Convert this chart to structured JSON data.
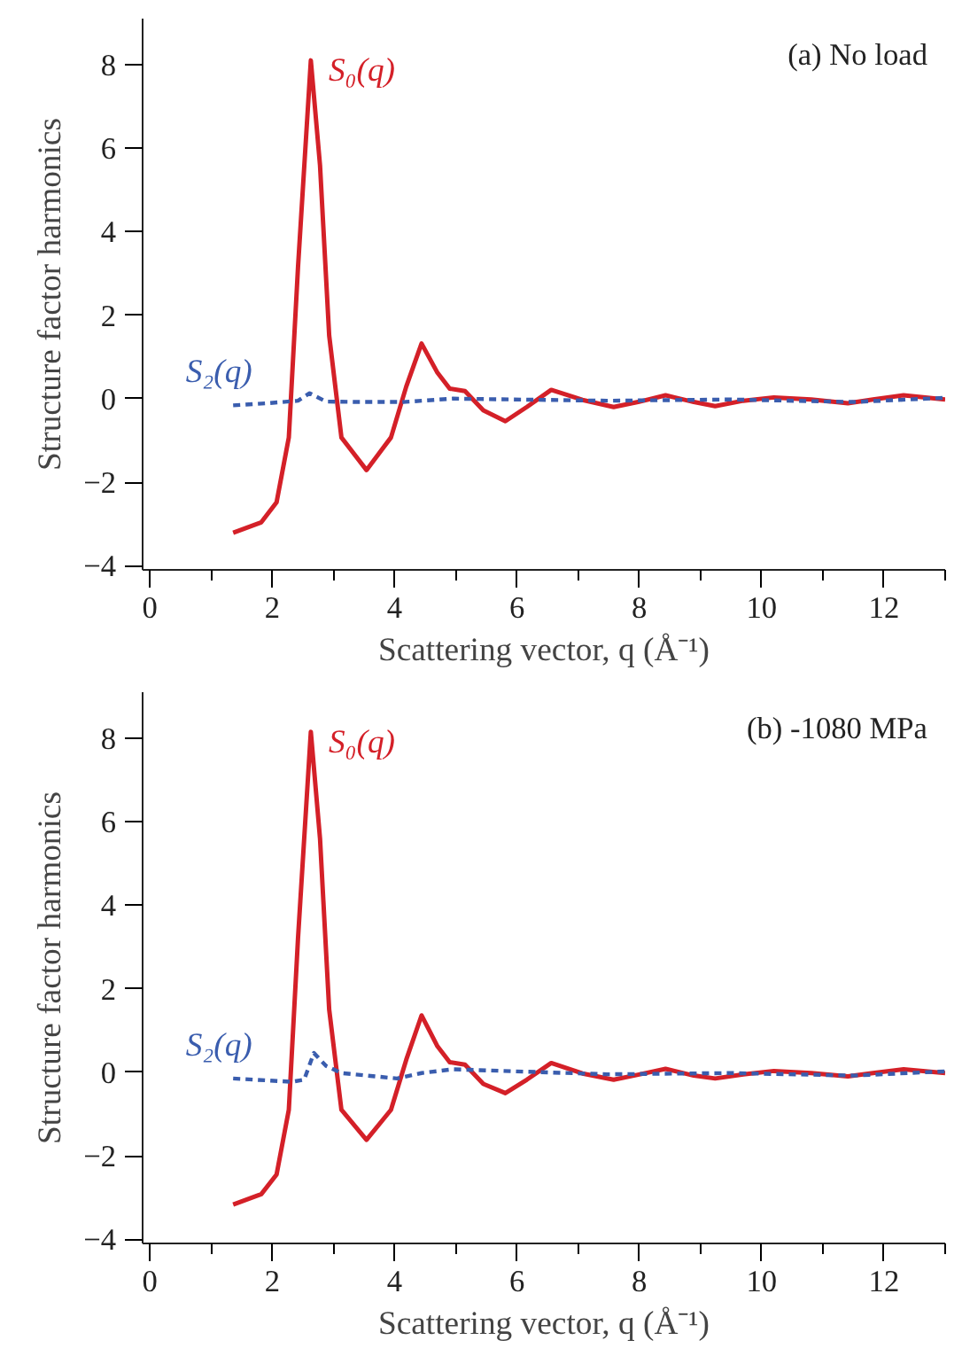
{
  "chart_data": [
    {
      "type": "line",
      "xlabel": "Scattering vector, q (Å⁻¹)",
      "ylabel": "Structure factor harmonics",
      "annotations": [
        "(a) No load"
      ],
      "xlim": [
        -0.12,
        13
      ],
      "ylim": [
        -4.1,
        9.1
      ],
      "xticks": [
        0,
        2,
        4,
        6,
        8,
        10,
        12
      ],
      "yticks": [
        -4,
        -2,
        0,
        2,
        4,
        6,
        8
      ],
      "grid": false,
      "series": [
        {
          "name": "S₀(q)",
          "color": "#d42028",
          "line_style": "solid",
          "x": [
            1.36,
            1.82,
            2.07,
            2.27,
            2.42,
            2.63,
            2.78,
            2.93,
            3.13,
            3.54,
            3.94,
            4.19,
            4.44,
            4.7,
            4.9,
            5.15,
            5.45,
            5.81,
            6.16,
            6.56,
            7.07,
            7.58,
            7.98,
            8.43,
            8.89,
            9.24,
            9.7,
            10.2,
            10.81,
            11.41,
            11.82,
            12.32,
            13.0
          ],
          "values": [
            -3.21,
            -2.96,
            -2.48,
            -0.93,
            3.14,
            8.1,
            5.59,
            1.51,
            -0.93,
            -1.71,
            -0.93,
            0.29,
            1.32,
            0.62,
            0.24,
            0.18,
            -0.28,
            -0.54,
            -0.2,
            0.21,
            -0.03,
            -0.2,
            -0.08,
            0.08,
            -0.08,
            -0.18,
            -0.05,
            0.03,
            -0.02,
            -0.11,
            -0.02,
            0.08,
            -0.02
          ]
        },
        {
          "name": "S₂(q)",
          "color": "#3a5dae",
          "line_style": "dashed",
          "x": [
            1.36,
            1.92,
            2.42,
            2.61,
            2.88,
            3.43,
            4.14,
            4.95,
            7.47,
            9.49,
            11.5,
            13.0
          ],
          "values": [
            -0.16,
            -0.11,
            -0.05,
            0.13,
            -0.07,
            -0.08,
            -0.08,
            0.0,
            -0.05,
            -0.02,
            -0.08,
            0.02
          ]
        }
      ]
    },
    {
      "type": "line",
      "xlabel": "Scattering vector, q (Å⁻¹)",
      "ylabel": "Structure factor harmonics",
      "annotations": [
        "(b) -1080 MPa"
      ],
      "xlim": [
        -0.12,
        13
      ],
      "ylim": [
        -4.1,
        9.1
      ],
      "xticks": [
        0,
        2,
        4,
        6,
        8,
        10,
        12
      ],
      "yticks": [
        -4,
        -2,
        0,
        2,
        4,
        6,
        8
      ],
      "grid": false,
      "series": [
        {
          "name": "S₀(q)",
          "color": "#d42028",
          "line_style": "solid",
          "x": [
            1.36,
            1.82,
            2.07,
            2.27,
            2.42,
            2.63,
            2.78,
            2.93,
            3.13,
            3.54,
            3.94,
            4.19,
            4.44,
            4.7,
            4.9,
            5.15,
            5.45,
            5.81,
            6.16,
            6.56,
            7.07,
            7.58,
            7.98,
            8.43,
            8.89,
            9.24,
            9.7,
            10.2,
            10.81,
            11.41,
            11.82,
            12.32,
            13.0
          ],
          "values": [
            -3.17,
            -2.92,
            -2.45,
            -0.9,
            3.2,
            8.15,
            5.6,
            1.5,
            -0.9,
            -1.62,
            -0.9,
            0.3,
            1.36,
            0.62,
            0.24,
            0.18,
            -0.28,
            -0.5,
            -0.18,
            0.22,
            -0.03,
            -0.18,
            -0.06,
            0.08,
            -0.08,
            -0.15,
            -0.05,
            0.03,
            -0.02,
            -0.1,
            -0.02,
            0.07,
            -0.02
          ]
        },
        {
          "name": "S₂(q)",
          "color": "#3a5dae",
          "line_style": "dashed",
          "x": [
            1.36,
            2.32,
            2.52,
            2.68,
            2.88,
            3.13,
            4.04,
            4.44,
            4.95,
            7.47,
            9.49,
            11.5,
            13.0
          ],
          "values": [
            -0.15,
            -0.23,
            -0.18,
            0.46,
            0.15,
            -0.02,
            -0.15,
            -0.02,
            0.07,
            -0.05,
            -0.02,
            -0.08,
            0.02
          ]
        }
      ]
    }
  ]
}
